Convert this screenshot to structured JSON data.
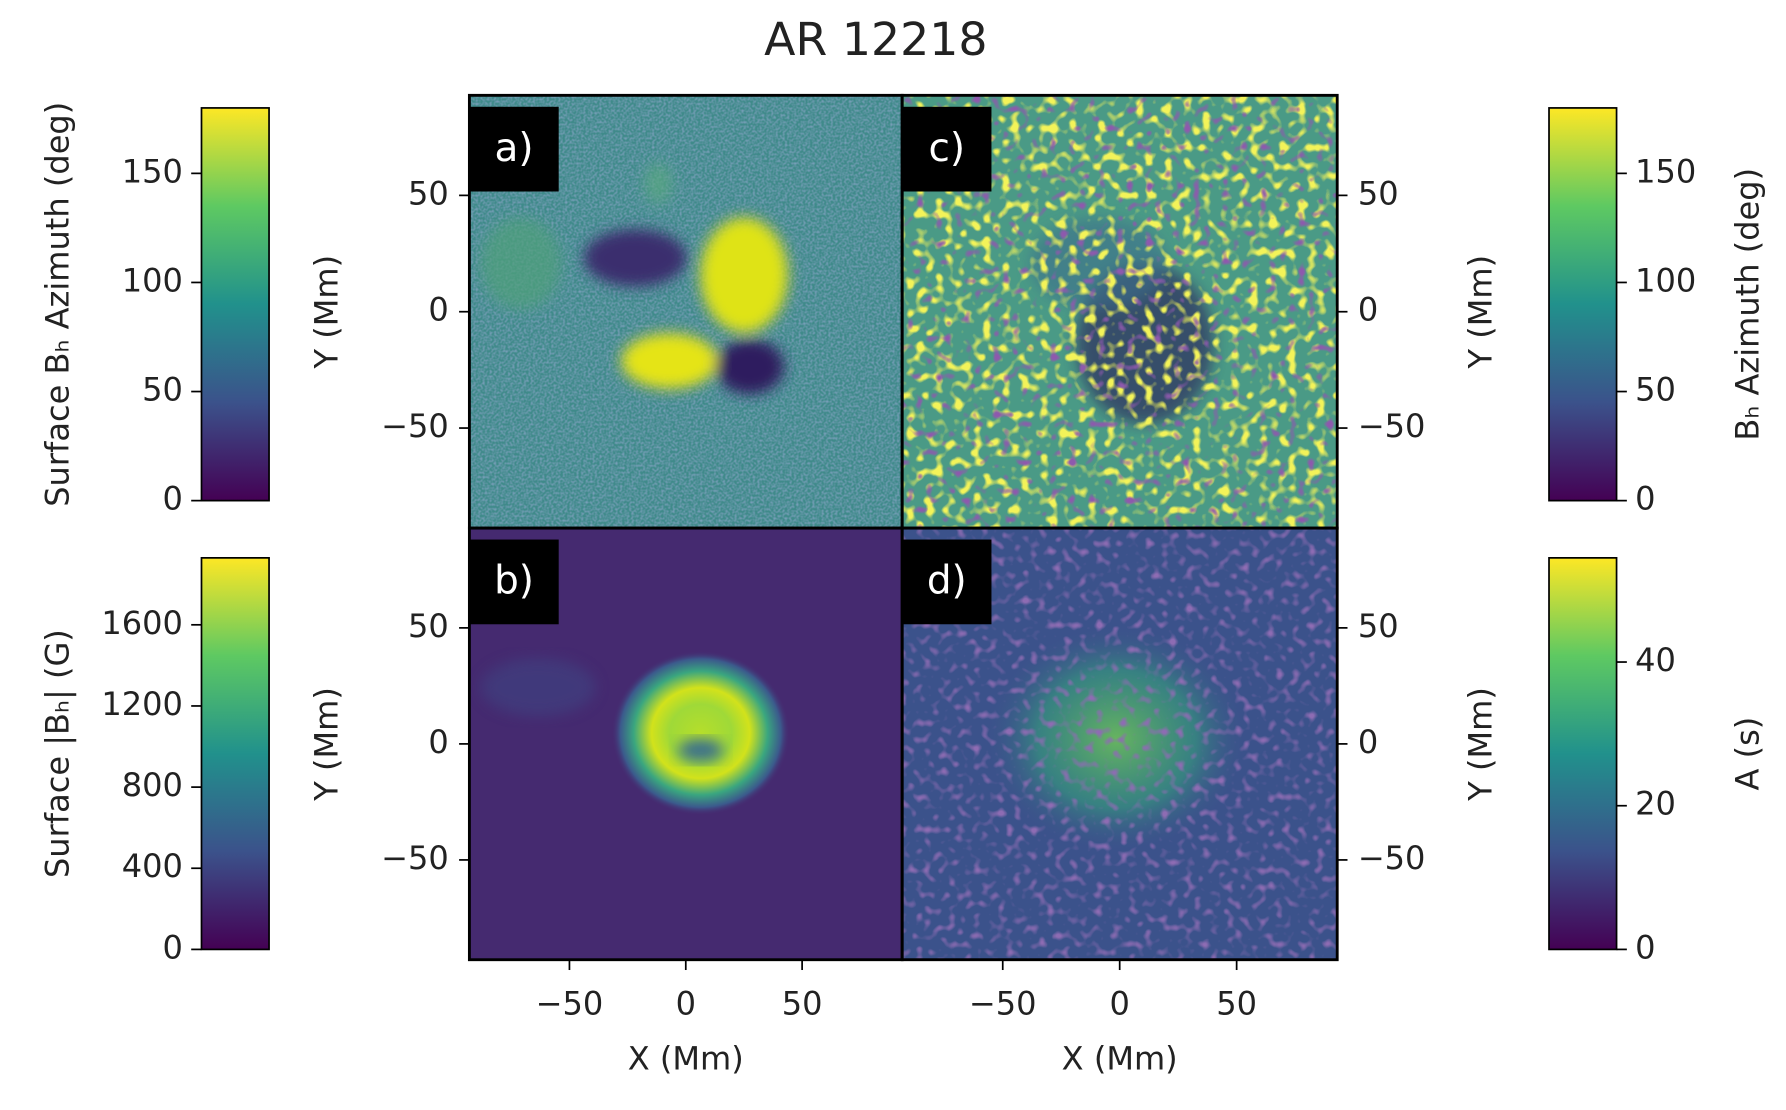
{
  "title": "AR 12218",
  "chart_data": [
    {
      "type": "heatmap",
      "panel_label": "a)",
      "xlim": [
        -93,
        93
      ],
      "ylim": [
        -93,
        93
      ],
      "yticks": [
        50,
        0,
        {
          "value": -50,
          "label": "−50"
        }
      ],
      "ylabel": "Y (Mm)",
      "colorbar": {
        "label": "Surface Bₕ Azimuth (deg)",
        "lim": [
          0,
          180
        ],
        "ticks": [
          0,
          50,
          100,
          150
        ]
      }
    },
    {
      "type": "heatmap",
      "panel_label": "b)",
      "xlim": [
        -93,
        93
      ],
      "ylim": [
        -93,
        93
      ],
      "xticks": [
        {
          "value": -50,
          "label": "−50"
        },
        0,
        50
      ],
      "xlabel": "X (Mm)",
      "yticks": [
        50,
        0,
        {
          "value": -50,
          "label": "−50"
        }
      ],
      "ylabel": "Y (Mm)",
      "colorbar": {
        "label": "Surface |Bₕ| (G)",
        "lim": [
          0,
          1930
        ],
        "ticks": [
          0,
          400,
          800,
          1200,
          1600
        ]
      }
    },
    {
      "type": "heatmap",
      "panel_label": "c)",
      "xlim": [
        -93,
        93
      ],
      "ylim": [
        -93,
        93
      ],
      "yticks": [
        50,
        0,
        {
          "value": -50,
          "label": "−50"
        }
      ],
      "ylabel": "Y (Mm)",
      "colorbar": {
        "label": "Bₕ Azimuth (deg)",
        "lim": [
          0,
          180
        ],
        "ticks": [
          0,
          50,
          100,
          150
        ]
      }
    },
    {
      "type": "heatmap",
      "panel_label": "d)",
      "xlim": [
        -93,
        93
      ],
      "ylim": [
        -93,
        93
      ],
      "xticks": [
        {
          "value": -50,
          "label": "−50"
        },
        0,
        50
      ],
      "xlabel": "X (Mm)",
      "yticks": [
        50,
        0,
        {
          "value": -50,
          "label": "−50"
        }
      ],
      "ylabel": "Y (Mm)",
      "colorbar": {
        "label": "A (s)",
        "lim": [
          0,
          54.5
        ],
        "ticks": [
          0,
          20,
          40
        ]
      }
    }
  ]
}
